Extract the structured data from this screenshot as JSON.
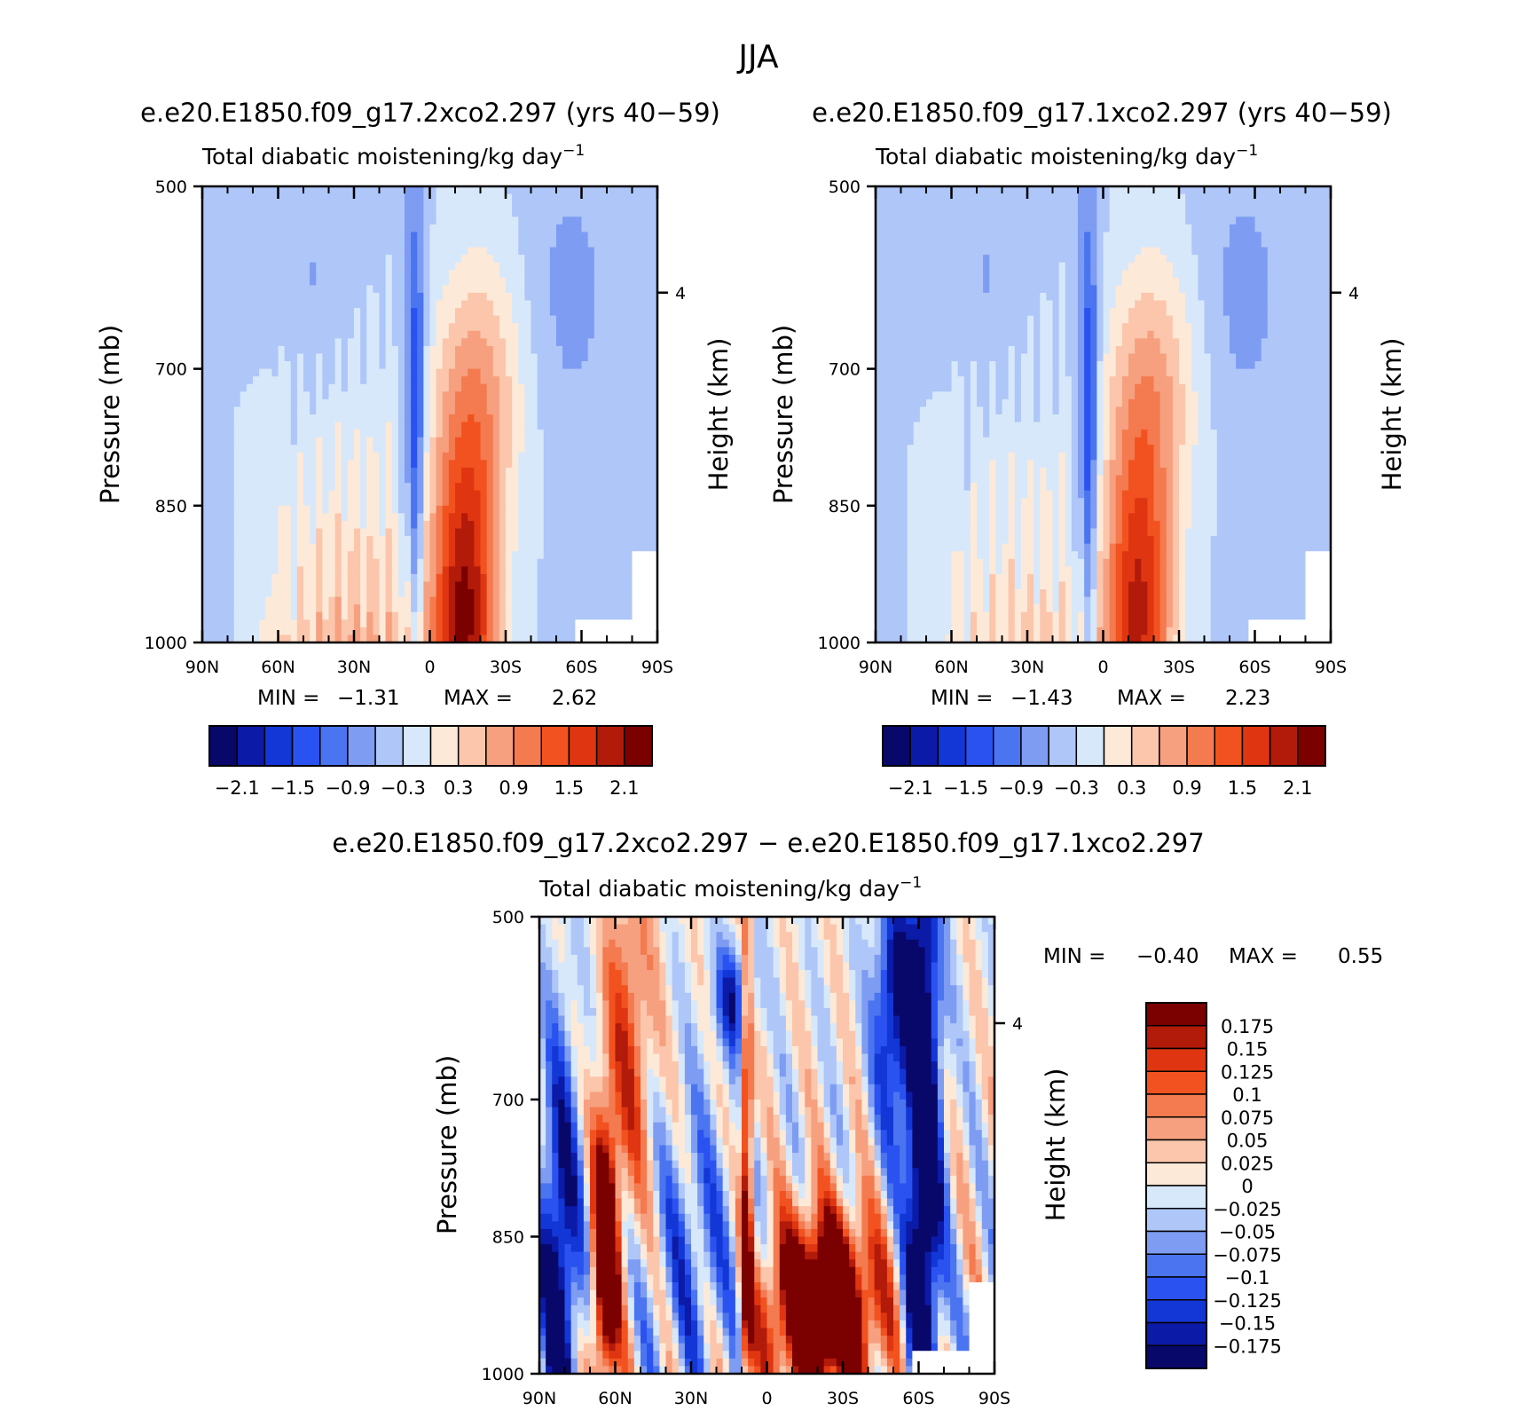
{
  "figure": {
    "suptitle": "JJA",
    "colors": {
      "main_scale": [
        "#08086b",
        "#0c1aa8",
        "#1337d6",
        "#2a52f0",
        "#4b74f0",
        "#7d9cf2",
        "#aec6f8",
        "#d7e8fa",
        "#fde9d8",
        "#fbc6ab",
        "#f6a07f",
        "#f47a4f",
        "#f2521f",
        "#df3611",
        "#b21a0a",
        "#7b0000"
      ],
      "diff_scale": [
        "#08086b",
        "#0c1aa8",
        "#1337d6",
        "#2a52f0",
        "#4b74f0",
        "#7d9cf2",
        "#aec6f8",
        "#d7e8fa",
        "#fde9d8",
        "#fbc6ab",
        "#f6a07f",
        "#f47a4f",
        "#f2521f",
        "#df3611",
        "#b21a0a",
        "#7b0000"
      ]
    }
  },
  "chart_data": [
    {
      "type": "heatmap",
      "id": "panel-a",
      "header": "e.e20.E1850.f09_g17.2xco2.297 (yrs 40−59)",
      "title_left": "Total diabatic moistening/kg day",
      "title_sup": "−1",
      "xlabel": "",
      "ylabel": "Pressure (mb)",
      "y2label": "Height (km)",
      "x_ticks": [
        "90N",
        "60N",
        "30N",
        "0",
        "30S",
        "60S",
        "90S"
      ],
      "y_ticks": [
        "500",
        "700",
        "850",
        "1000"
      ],
      "y_tick_values": [
        500,
        700,
        850,
        1000
      ],
      "y2_ticks": [
        "4"
      ],
      "xlim": [
        90,
        -90
      ],
      "ylim": [
        1000,
        500
      ],
      "stats": {
        "min_label": "MIN =",
        "min": "−1.31",
        "max_label": "MAX =",
        "max": "2.62"
      },
      "colorbar_labels": [
        "−2.1",
        "−1.5",
        "−0.9",
        "−0.3",
        "0.3",
        "0.9",
        "1.5",
        "2.1"
      ],
      "levels": [
        -2.1,
        -1.8,
        -1.5,
        -1.2,
        -0.9,
        -0.6,
        -0.3,
        0,
        0.3,
        0.6,
        0.9,
        1.2,
        1.5,
        1.8,
        2.1
      ],
      "min_value": -1.31,
      "max_value": 2.62
    },
    {
      "type": "heatmap",
      "id": "panel-b",
      "header": "e.e20.E1850.f09_g17.1xco2.297 (yrs 40−59)",
      "title_left": "Total diabatic moistening/kg day",
      "title_sup": "−1",
      "xlabel": "",
      "ylabel": "Pressure (mb)",
      "y2label": "Height (km)",
      "x_ticks": [
        "90N",
        "60N",
        "30N",
        "0",
        "30S",
        "60S",
        "90S"
      ],
      "y_ticks": [
        "500",
        "700",
        "850",
        "1000"
      ],
      "y_tick_values": [
        500,
        700,
        850,
        1000
      ],
      "y2_ticks": [
        "4"
      ],
      "xlim": [
        90,
        -90
      ],
      "ylim": [
        1000,
        500
      ],
      "stats": {
        "min_label": "MIN =",
        "min": "−1.43",
        "max_label": "MAX =",
        "max": "2.23"
      },
      "colorbar_labels": [
        "−2.1",
        "−1.5",
        "−0.9",
        "−0.3",
        "0.3",
        "0.9",
        "1.5",
        "2.1"
      ],
      "levels": [
        -2.1,
        -1.8,
        -1.5,
        -1.2,
        -0.9,
        -0.6,
        -0.3,
        0,
        0.3,
        0.6,
        0.9,
        1.2,
        1.5,
        1.8,
        2.1
      ],
      "min_value": -1.43,
      "max_value": 2.23
    },
    {
      "type": "heatmap",
      "id": "panel-diff",
      "header": "e.e20.E1850.f09_g17.2xco2.297 − e.e20.E1850.f09_g17.1xco2.297",
      "title_left": "Total diabatic moistening/kg day",
      "title_sup": "−1",
      "xlabel": "",
      "ylabel": "Pressure (mb)",
      "y2label": "Height (km)",
      "x_ticks": [
        "90N",
        "60N",
        "30N",
        "0",
        "30S",
        "60S",
        "90S"
      ],
      "y_ticks": [
        "500",
        "700",
        "850",
        "1000"
      ],
      "y_tick_values": [
        500,
        700,
        850,
        1000
      ],
      "y2_ticks": [
        "4"
      ],
      "xlim": [
        90,
        -90
      ],
      "ylim": [
        1000,
        500
      ],
      "stats": {
        "min_label": "MIN =",
        "min": "−0.40",
        "max_label": "MAX =",
        "max": "0.55"
      },
      "colorbar_labels": [
        "0.175",
        "0.15",
        "0.125",
        "0.1",
        "0.075",
        "0.05",
        "0.025",
        "0",
        "−0.025",
        "−0.05",
        "−0.075",
        "−0.1",
        "−0.125",
        "−0.15",
        "−0.175"
      ],
      "levels": [
        -0.175,
        -0.15,
        -0.125,
        -0.1,
        -0.075,
        -0.05,
        -0.025,
        0,
        0.025,
        0.05,
        0.075,
        0.1,
        0.125,
        0.15,
        0.175
      ],
      "min_value": -0.4,
      "max_value": 0.55
    }
  ]
}
